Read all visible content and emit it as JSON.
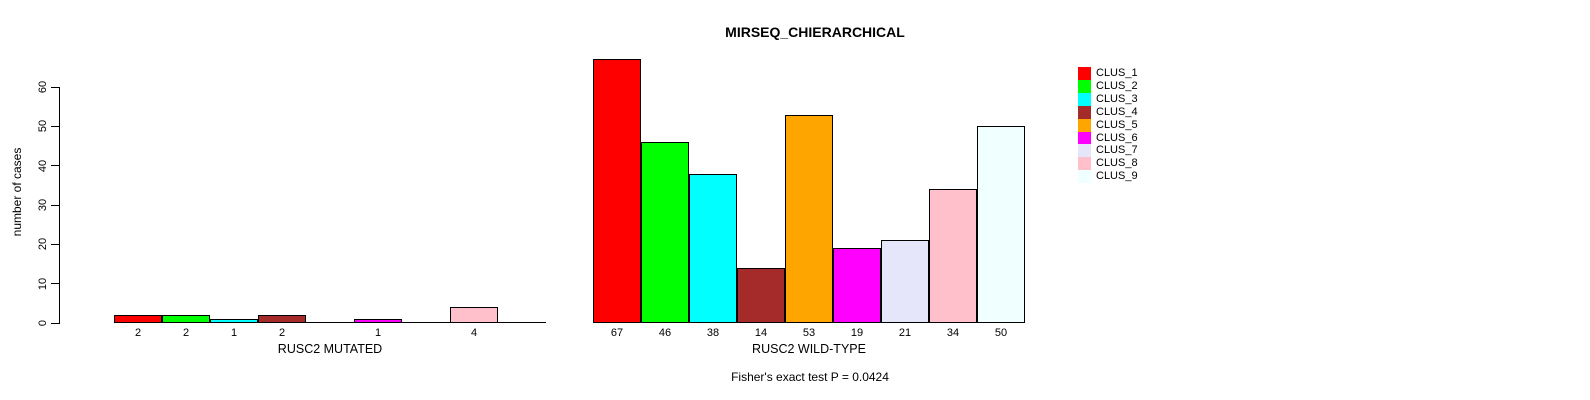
{
  "title": "MIRSEQ_CHIERARCHICAL",
  "footer": "Fisher's exact test P = 0.0424",
  "y_axis": {
    "label": "number of cases",
    "ticks": [
      0,
      10,
      20,
      30,
      40,
      50,
      60
    ]
  },
  "legend": {
    "position": "right",
    "entries": [
      {
        "label": "CLUS_1",
        "color": "#FF0000"
      },
      {
        "label": "CLUS_2",
        "color": "#00FF00"
      },
      {
        "label": "CLUS_3",
        "color": "#00FFFF"
      },
      {
        "label": "CLUS_4",
        "color": "#A52A2A"
      },
      {
        "label": "CLUS_5",
        "color": "#FFA500"
      },
      {
        "label": "CLUS_6",
        "color": "#FF00FF"
      },
      {
        "label": "CLUS_7",
        "color": "#E6E6FA"
      },
      {
        "label": "CLUS_8",
        "color": "#FFC0CB"
      },
      {
        "label": "CLUS_9",
        "color": "#F0FFFF"
      }
    ]
  },
  "chart_data": [
    {
      "type": "bar",
      "panel": "left",
      "title": "MIRSEQ_CHIERARCHICAL",
      "xlabel": "RUSC2 MUTATED",
      "ylabel": "number of cases",
      "categories": [
        "CLUS_1",
        "CLUS_2",
        "CLUS_3",
        "CLUS_4",
        "CLUS_5",
        "CLUS_6",
        "CLUS_7",
        "CLUS_8",
        "CLUS_9"
      ],
      "values": [
        2,
        2,
        1,
        2,
        0,
        1,
        0,
        4,
        0
      ],
      "bar_labels": [
        "2",
        "2",
        "1",
        "2",
        "",
        "1",
        "",
        "4",
        ""
      ],
      "colors": [
        "#FF0000",
        "#00FF00",
        "#00FFFF",
        "#A52A2A",
        "#FFA500",
        "#FF00FF",
        "#E6E6FA",
        "#FFC0CB",
        "#F0FFFF"
      ],
      "ylim": [
        0,
        60
      ],
      "yticks": [
        0,
        10,
        20,
        30,
        40,
        50,
        60
      ],
      "grid": false
    },
    {
      "type": "bar",
      "panel": "right",
      "title": "MIRSEQ_CHIERARCHICAL",
      "xlabel": "RUSC2 WILD-TYPE",
      "ylabel": "number of cases",
      "categories": [
        "CLUS_1",
        "CLUS_2",
        "CLUS_3",
        "CLUS_4",
        "CLUS_5",
        "CLUS_6",
        "CLUS_7",
        "CLUS_8",
        "CLUS_9"
      ],
      "values": [
        67,
        46,
        38,
        14,
        53,
        19,
        21,
        34,
        50
      ],
      "bar_labels": [
        "67",
        "46",
        "38",
        "14",
        "53",
        "19",
        "21",
        "34",
        "50"
      ],
      "colors": [
        "#FF0000",
        "#00FF00",
        "#00FFFF",
        "#A52A2A",
        "#FFA500",
        "#FF00FF",
        "#E6E6FA",
        "#FFC0CB",
        "#F0FFFF"
      ],
      "ylim": [
        0,
        60
      ],
      "yticks": [
        0,
        10,
        20,
        30,
        40,
        50,
        60
      ],
      "grid": false
    }
  ]
}
